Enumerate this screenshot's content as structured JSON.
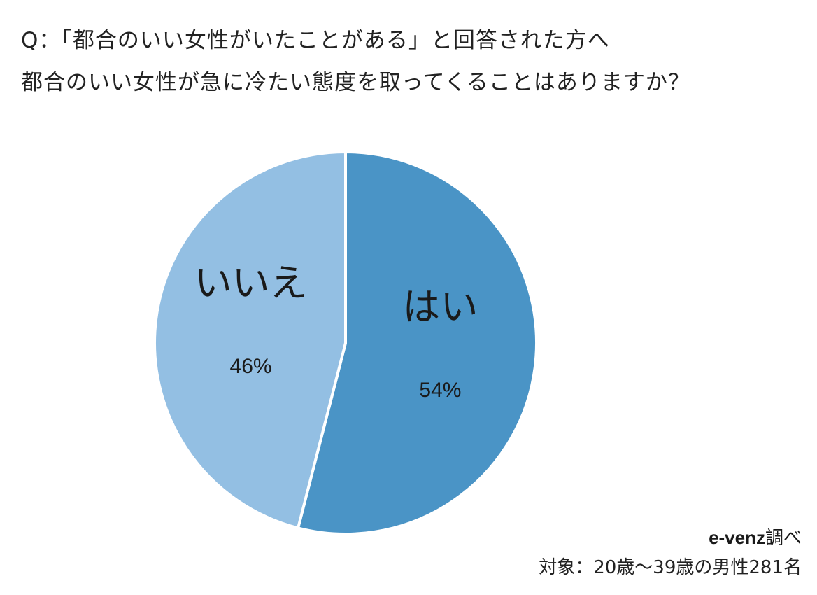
{
  "title": {
    "line1": "Q：「都合のいい女性がいたことがある」と回答された方へ",
    "line2": "都合のいい女性が急に冷たい態度を取ってくることはありますか？"
  },
  "chart_data": {
    "type": "pie",
    "slices": [
      {
        "label": "はい",
        "value": 54,
        "value_label": "54%",
        "color": "#4a94c6"
      },
      {
        "label": "いいえ",
        "value": 46,
        "value_label": "46%",
        "color": "#93bfe3"
      }
    ],
    "start": "12 o'clock",
    "direction": "clockwise"
  },
  "source": {
    "brand": "e-venz",
    "suffix": "調べ"
  },
  "note": "対象：20歳〜39歳の男性281名"
}
